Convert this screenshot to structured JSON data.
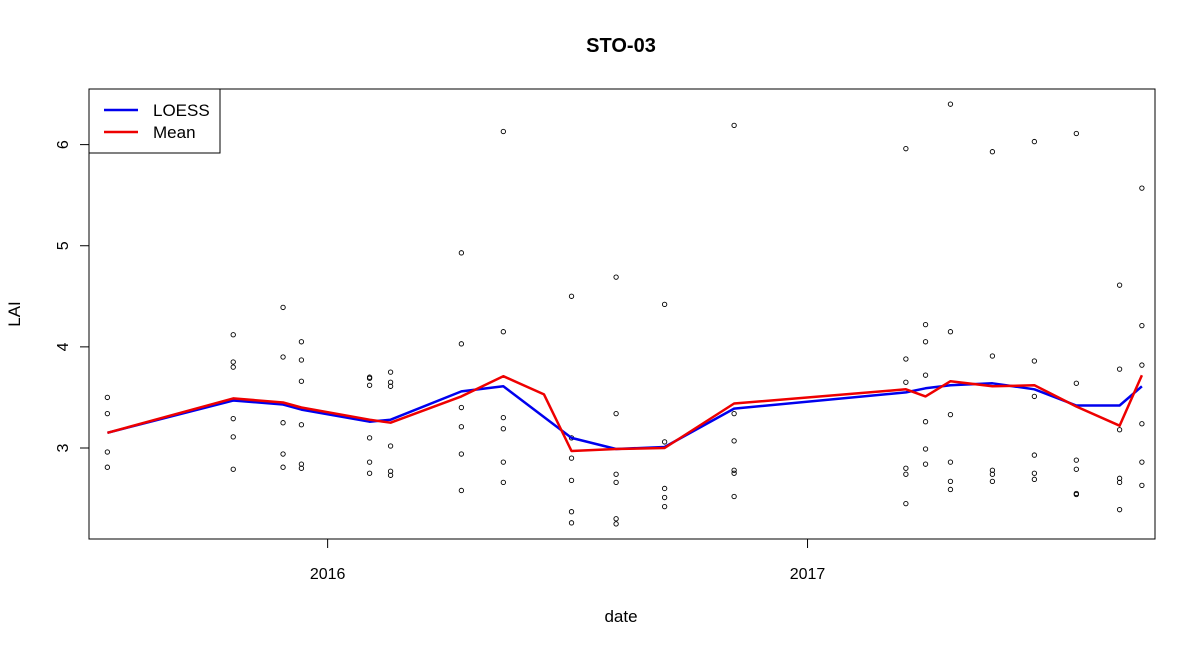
{
  "chart_data": {
    "type": "scatter",
    "title": "STO-03",
    "xlabel": "date",
    "ylabel": "LAI",
    "xlim": [
      "2015-07-03",
      "2017-09-23"
    ],
    "ylim": [
      2.1,
      6.55
    ],
    "x_ticks": [
      {
        "date": "2016-01-01",
        "label": "2016"
      },
      {
        "date": "2017-01-01",
        "label": "2017"
      }
    ],
    "y_ticks": [
      {
        "value": 3,
        "label": "3"
      },
      {
        "value": 4,
        "label": "4"
      },
      {
        "value": 5,
        "label": "5"
      },
      {
        "value": 6,
        "label": "6"
      }
    ],
    "grid": false,
    "legend_position": "top-left",
    "legend": [
      {
        "label": "LOESS",
        "color": "#0000ee"
      },
      {
        "label": "Mean",
        "color": "#ee0000"
      }
    ],
    "points": [
      {
        "date": "2015-07-17",
        "values": [
          3.5,
          3.34,
          2.96,
          2.81
        ]
      },
      {
        "date": "2015-10-21",
        "values": [
          4.12,
          3.85,
          3.8,
          3.29,
          3.11,
          2.79
        ]
      },
      {
        "date": "2015-11-28",
        "values": [
          4.39,
          3.9,
          3.25,
          2.94,
          2.81
        ]
      },
      {
        "date": "2015-12-12",
        "values": [
          4.05,
          3.87,
          3.66,
          3.23,
          2.84,
          2.8
        ]
      },
      {
        "date": "2016-02-02",
        "values": [
          3.7,
          3.69,
          3.62,
          3.1,
          2.86,
          2.75
        ]
      },
      {
        "date": "2016-02-18",
        "values": [
          3.75,
          3.65,
          3.61,
          3.02,
          2.77,
          2.73
        ]
      },
      {
        "date": "2016-04-12",
        "values": [
          4.93,
          4.03,
          3.4,
          3.21,
          2.94,
          2.58
        ]
      },
      {
        "date": "2016-05-14",
        "values": [
          6.13,
          4.15,
          3.3,
          3.19,
          2.86,
          2.66
        ]
      },
      {
        "date": "2016-07-05",
        "values": [
          4.5,
          3.1,
          2.9,
          2.68,
          2.37,
          2.26
        ]
      },
      {
        "date": "2016-08-08",
        "values": [
          4.69,
          3.34,
          2.74,
          2.66,
          2.3,
          2.25
        ]
      },
      {
        "date": "2016-09-14",
        "values": [
          4.42,
          3.06,
          2.6,
          2.51,
          2.42
        ]
      },
      {
        "date": "2016-11-06",
        "values": [
          6.19,
          3.34,
          3.07,
          2.78,
          2.75,
          2.52
        ]
      },
      {
        "date": "2017-03-17",
        "values": [
          5.96,
          3.88,
          3.65,
          2.8,
          2.74,
          2.45
        ]
      },
      {
        "date": "2017-04-01",
        "values": [
          4.22,
          4.05,
          3.72,
          3.26,
          2.99,
          2.84
        ]
      },
      {
        "date": "2017-04-20",
        "values": [
          6.4,
          4.15,
          3.33,
          2.86,
          2.67,
          2.59
        ]
      },
      {
        "date": "2017-05-22",
        "values": [
          5.93,
          3.91,
          2.78,
          2.74,
          2.67
        ]
      },
      {
        "date": "2017-06-23",
        "values": [
          6.03,
          3.86,
          3.51,
          2.93,
          2.75,
          2.69
        ]
      },
      {
        "date": "2017-07-25",
        "values": [
          6.11,
          3.64,
          2.88,
          2.79,
          2.55,
          2.54
        ]
      },
      {
        "date": "2017-08-27",
        "values": [
          4.61,
          3.78,
          3.18,
          2.7,
          2.66,
          2.39
        ]
      },
      {
        "date": "2017-09-13",
        "values": [
          5.57,
          4.21,
          3.82,
          3.24,
          2.86,
          2.63
        ]
      }
    ],
    "series": [
      {
        "name": "LOESS",
        "color": "#0000ee",
        "points": [
          [
            "2015-07-17",
            3.15
          ],
          [
            "2015-10-21",
            3.47
          ],
          [
            "2015-11-28",
            3.43
          ],
          [
            "2015-12-12",
            3.38
          ],
          [
            "2016-02-02",
            3.26
          ],
          [
            "2016-02-18",
            3.28
          ],
          [
            "2016-04-12",
            3.56
          ],
          [
            "2016-05-14",
            3.61
          ],
          [
            "2016-07-05",
            3.1
          ],
          [
            "2016-08-08",
            2.99
          ],
          [
            "2016-09-14",
            3.01
          ],
          [
            "2016-11-06",
            3.39
          ],
          [
            "2017-03-17",
            3.55
          ],
          [
            "2017-04-01",
            3.59
          ],
          [
            "2017-04-20",
            3.62
          ],
          [
            "2017-05-22",
            3.64
          ],
          [
            "2017-06-23",
            3.58
          ],
          [
            "2017-07-25",
            3.42
          ],
          [
            "2017-08-27",
            3.42
          ],
          [
            "2017-09-13",
            3.61
          ]
        ]
      },
      {
        "name": "Mean",
        "color": "#ee0000",
        "points": [
          [
            "2015-07-17",
            3.15
          ],
          [
            "2015-10-21",
            3.49
          ],
          [
            "2015-11-28",
            3.45
          ],
          [
            "2015-12-12",
            3.4
          ],
          [
            "2016-02-02",
            3.28
          ],
          [
            "2016-02-18",
            3.25
          ],
          [
            "2016-04-12",
            3.51
          ],
          [
            "2016-05-14",
            3.71
          ],
          [
            "2016-06-14",
            3.53
          ],
          [
            "2016-07-05",
            2.97
          ],
          [
            "2016-08-08",
            2.99
          ],
          [
            "2016-09-14",
            3.0
          ],
          [
            "2016-11-06",
            3.44
          ],
          [
            "2017-03-17",
            3.58
          ],
          [
            "2017-04-01",
            3.51
          ],
          [
            "2017-04-20",
            3.66
          ],
          [
            "2017-05-22",
            3.61
          ],
          [
            "2017-06-23",
            3.62
          ],
          [
            "2017-07-25",
            3.41
          ],
          [
            "2017-08-27",
            3.22
          ],
          [
            "2017-09-13",
            3.72
          ]
        ]
      }
    ]
  }
}
